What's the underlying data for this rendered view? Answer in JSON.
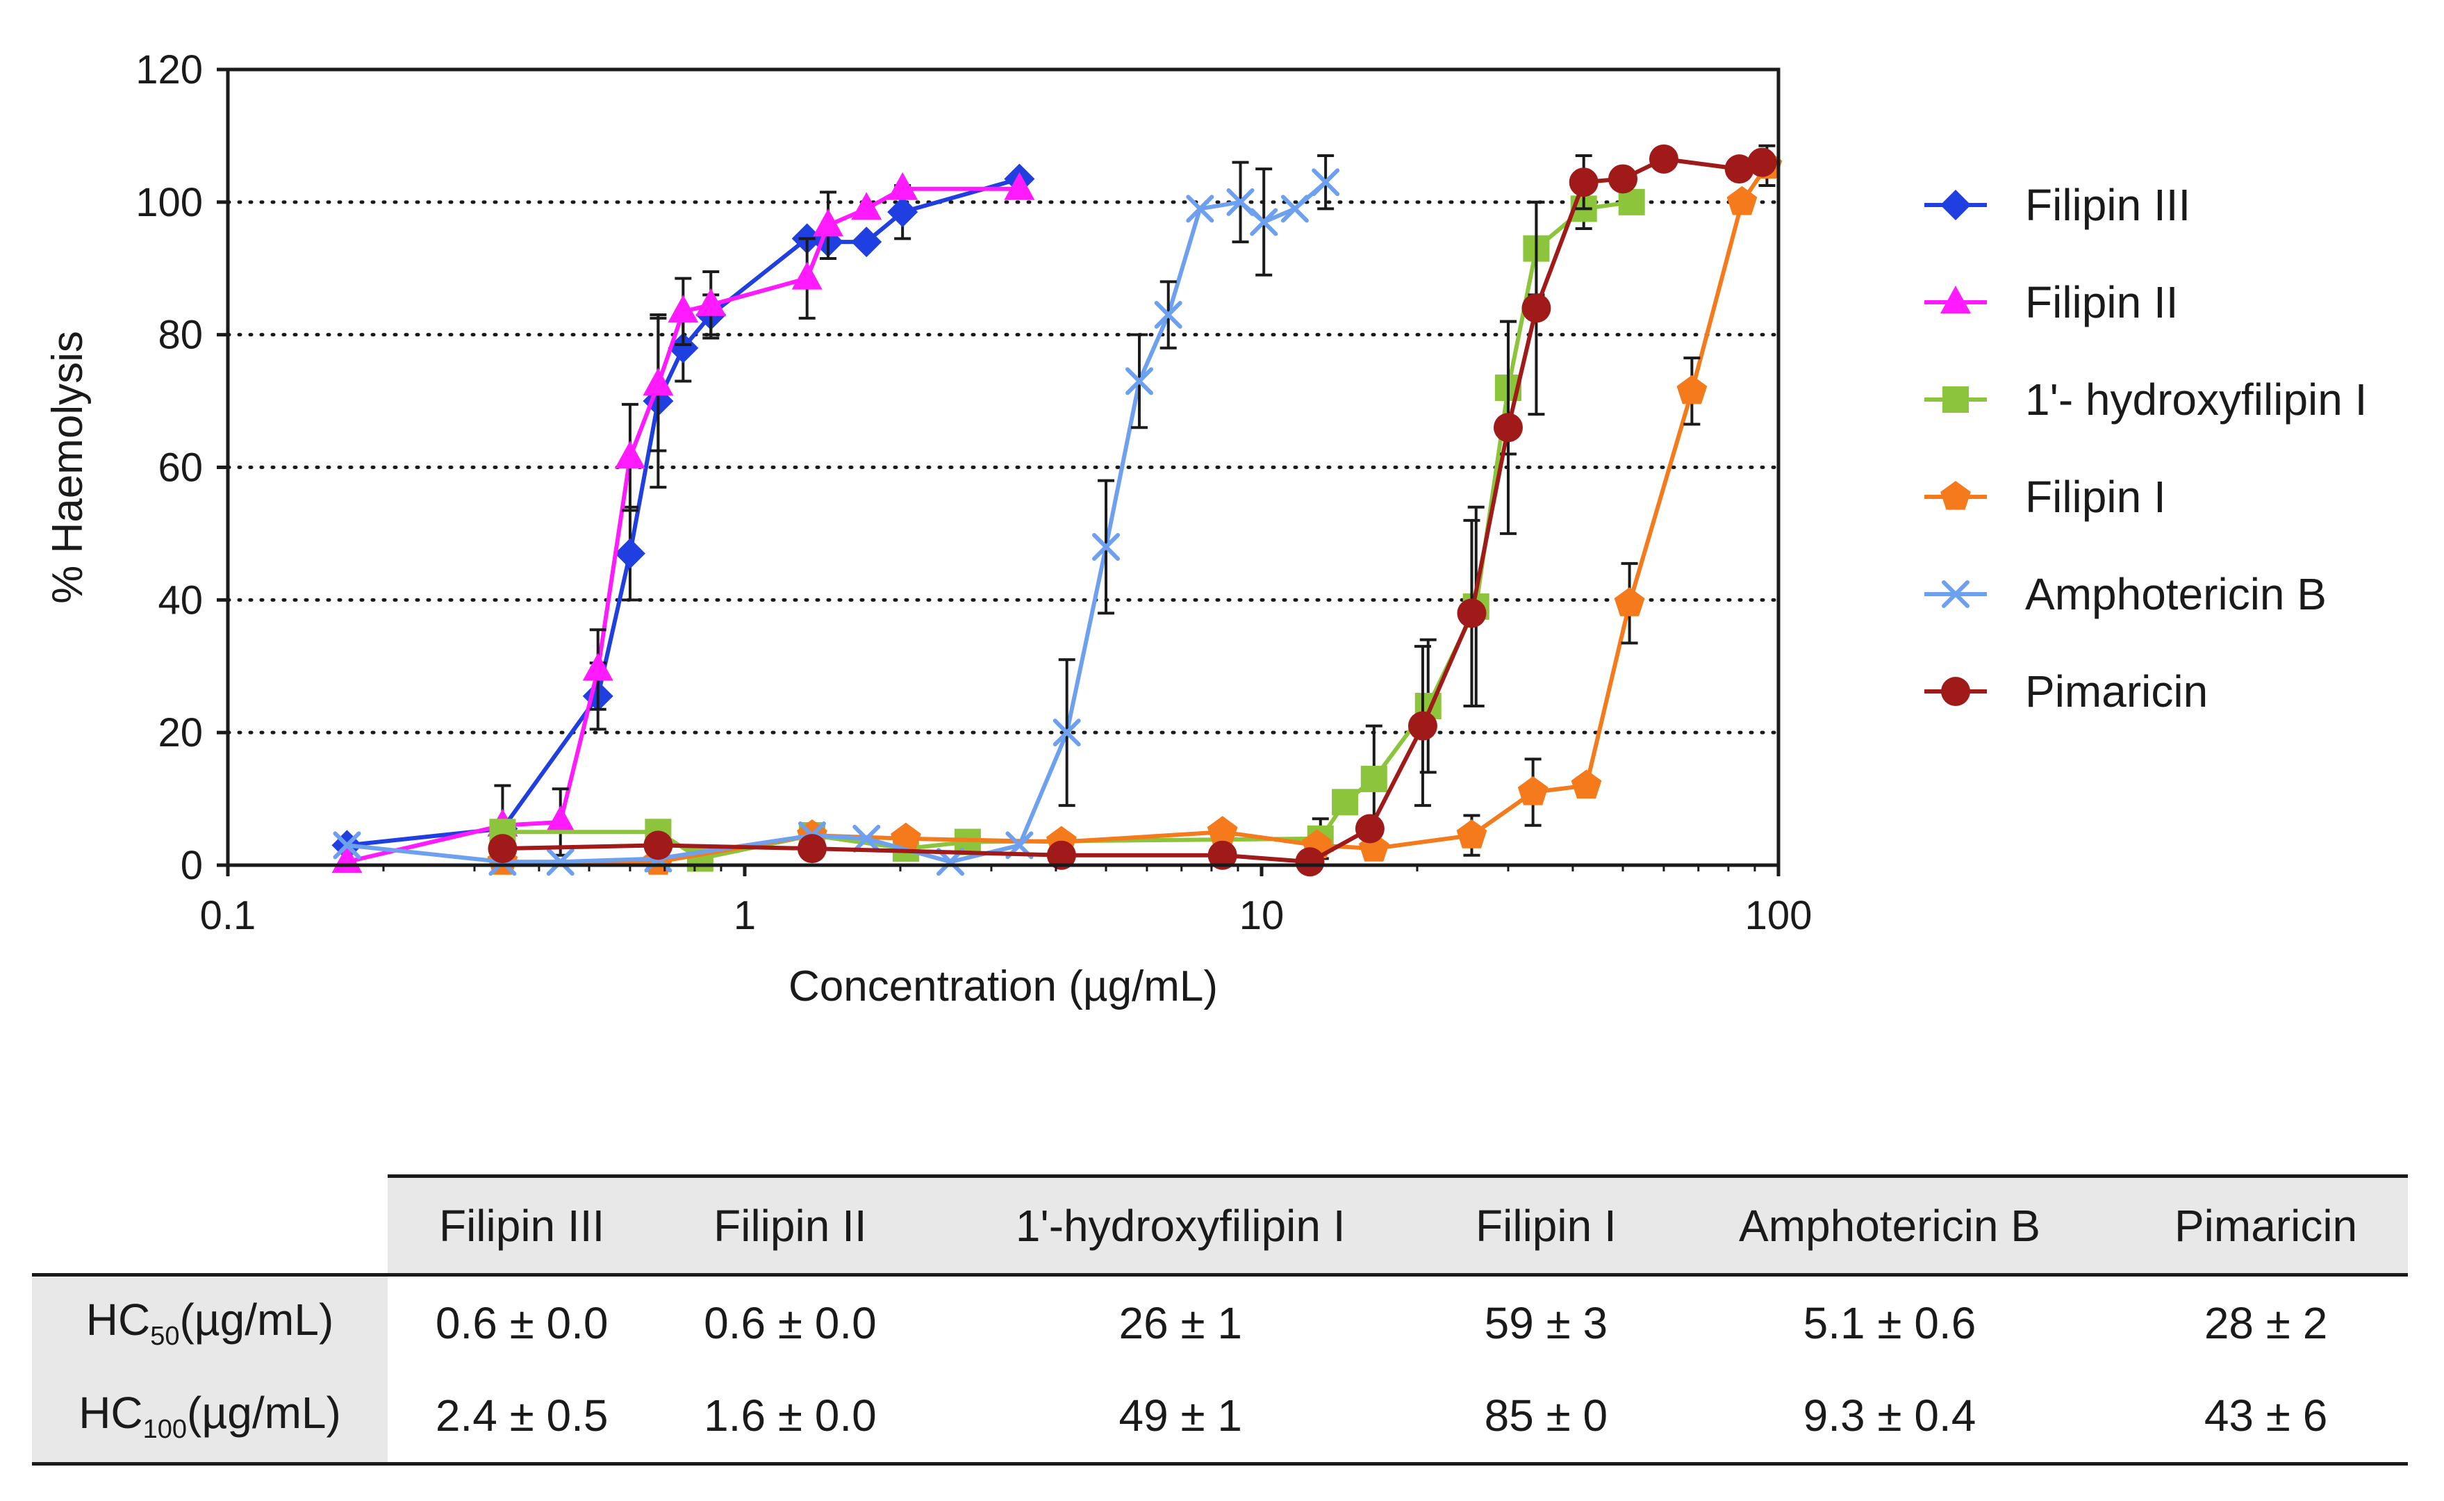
{
  "chart_data": {
    "type": "scatter",
    "xscale": "log",
    "xlim": [
      0.1,
      100
    ],
    "ylim": [
      0,
      120
    ],
    "xticks": [
      0.1,
      1,
      10,
      100
    ],
    "xtick_labels": [
      "0.1",
      "1",
      "10",
      "100"
    ],
    "yticks": [
      0,
      20,
      40,
      60,
      80,
      100,
      120
    ],
    "ytick_labels": [
      "0",
      "20",
      "40",
      "60",
      "80",
      "100",
      "120"
    ],
    "xlabel": "Concentration (µg/mL)",
    "ylabel": "% Haemolysis",
    "grid": "horizontal dotted",
    "legend_position": "right",
    "series": [
      {
        "name": "Filipin III",
        "color": "#1f3fe0",
        "marker": "diamond",
        "x": [
          0.17,
          0.34,
          0.52,
          0.6,
          0.68,
          0.76,
          0.86,
          1.32,
          1.45,
          1.72,
          2.02,
          3.4
        ],
        "y": [
          3,
          5.5,
          25.5,
          47,
          70,
          78,
          83,
          94.5,
          94,
          94,
          98.5,
          103.5
        ],
        "err": [
          0,
          0,
          5,
          7,
          13,
          5,
          3,
          0,
          0,
          0,
          4,
          0
        ]
      },
      {
        "name": "Filipin II",
        "color": "#ff1aff",
        "marker": "triangle",
        "x": [
          0.17,
          0.34,
          0.44,
          0.52,
          0.6,
          0.68,
          0.76,
          0.86,
          1.32,
          1.45,
          1.72,
          2.02,
          3.4
        ],
        "y": [
          0.5,
          6,
          6.5,
          29.5,
          61.5,
          72.5,
          83.5,
          84.5,
          88.5,
          96.5,
          99,
          102,
          102
        ],
        "err": [
          0,
          6,
          5,
          6,
          8,
          10,
          5,
          5,
          6,
          5,
          0,
          0,
          0
        ]
      },
      {
        "name": "1'- hydroxyfilipin I",
        "color": "#8cc43c",
        "marker": "square",
        "x": [
          0.34,
          0.68,
          0.82,
          1.35,
          2.05,
          2.7,
          13.0,
          14.5,
          16.5,
          21.0,
          26.0,
          30.0,
          34.0,
          42.0,
          52.0
        ],
        "y": [
          5,
          5,
          1,
          4.5,
          2.5,
          3.5,
          4,
          9.5,
          13,
          24,
          39,
          72,
          93,
          99,
          100
        ],
        "err": [
          0,
          0,
          0,
          0,
          0,
          0,
          3,
          0,
          8,
          10,
          15,
          10,
          7,
          3,
          0
        ]
      },
      {
        "name": "Filipin I",
        "color": "#f47a1c",
        "marker": "pentagon",
        "x": [
          0.34,
          0.68,
          1.35,
          2.05,
          4.1,
          8.4,
          12.8,
          16.5,
          25.5,
          33.5,
          42.5,
          51.5,
          68.0,
          85.0,
          95.0
        ],
        "y": [
          0.5,
          0.5,
          4.5,
          4,
          3.5,
          5,
          3,
          2.5,
          4.5,
          11,
          12,
          39.5,
          71.5,
          100,
          105.5
        ],
        "err": [
          0,
          0,
          0,
          0,
          0,
          0,
          0,
          0,
          3,
          5,
          0,
          6,
          5,
          0,
          3
        ]
      },
      {
        "name": "Amphotericin B",
        "color": "#6ea0f0",
        "marker": "x",
        "x": [
          0.17,
          0.34,
          0.44,
          0.68,
          1.35,
          1.72,
          2.5,
          3.4,
          4.2,
          5.0,
          5.8,
          6.6,
          7.6,
          9.1,
          10.1,
          11.6,
          13.3
        ],
        "y": [
          3,
          0.5,
          0.5,
          1,
          4.5,
          4,
          0.5,
          3,
          20,
          48,
          73,
          83,
          99,
          100,
          97,
          99,
          103
        ],
        "err": [
          0,
          0,
          0,
          0,
          0,
          0,
          0,
          0,
          11,
          10,
          7,
          5,
          0,
          6,
          8,
          0,
          4
        ]
      },
      {
        "name": "Pimaricin",
        "color": "#a01a1a",
        "marker": "circle",
        "x": [
          0.34,
          0.68,
          1.35,
          4.1,
          8.4,
          12.4,
          16.2,
          20.5,
          25.5,
          30.0,
          34.0,
          42.0,
          50.0,
          60.0,
          84.0,
          93.0
        ],
        "y": [
          2.5,
          3,
          2.5,
          1.5,
          1.5,
          0.5,
          5.5,
          21,
          38,
          66,
          84,
          103,
          103.5,
          106.5,
          105,
          106
        ],
        "err": [
          0,
          0,
          0,
          0,
          0,
          0,
          0,
          12,
          14,
          16,
          16,
          4,
          0,
          0,
          0,
          0
        ]
      }
    ]
  },
  "table": {
    "headers": [
      "Filipin III",
      "Filipin II",
      "1'-hydroxyfilipin I",
      "Filipin I",
      "Amphotericin B",
      "Pimaricin"
    ],
    "rows": [
      {
        "label_main": "HC",
        "label_sub": "50",
        "label_unit": "(µg/mL)",
        "values": [
          "0.6 ± 0.0",
          "0.6 ± 0.0",
          "26 ± 1",
          "59 ± 3",
          "5.1 ± 0.6",
          "28 ± 2"
        ]
      },
      {
        "label_main": "HC",
        "label_sub": "100",
        "label_unit": "(µg/mL)",
        "values": [
          "2.4 ± 0.5",
          "1.6 ± 0.0",
          "49 ± 1",
          "85 ± 0",
          "9.3 ± 0.4",
          "43 ± 6"
        ]
      }
    ]
  }
}
